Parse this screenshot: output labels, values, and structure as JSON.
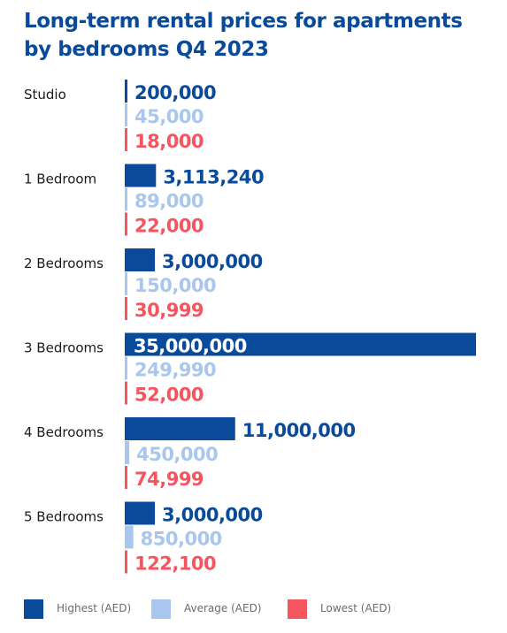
{
  "chart_data": {
    "type": "bar",
    "orientation": "horizontal",
    "title_lines": [
      "Long-term rental prices for apartments",
      "by bedrooms Q4 2023"
    ],
    "categories": [
      "Studio",
      "1 Bedroom",
      "2 Bedrooms",
      "3 Bedrooms",
      "4 Bedrooms",
      "5 Bedrooms"
    ],
    "series": [
      {
        "name": "Highest (AED)",
        "color": "#0a4a9b",
        "values": [
          200000,
          3113240,
          3000000,
          35000000,
          11000000,
          3000000
        ],
        "labels": [
          "200,000",
          "3,113,240",
          "3,000,000",
          "35,000,000",
          "11,000,000",
          "3,000,000"
        ]
      },
      {
        "name": "Average (AED)",
        "color": "#a8c6ee",
        "values": [
          45000,
          89000,
          150000,
          249990,
          450000,
          850000
        ],
        "labels": [
          "45,000",
          "89,000",
          "150,000",
          "249,990",
          "450,000",
          "850,000"
        ]
      },
      {
        "name": "Lowest (AED)",
        "color": "#f5555f",
        "values": [
          18000,
          22000,
          30999,
          52000,
          74999,
          122100
        ],
        "labels": [
          "18,000",
          "22,000",
          "30,999",
          "52,000",
          "74,999",
          "122,100"
        ]
      }
    ],
    "xlim": [
      0,
      35000000
    ],
    "grid": false,
    "legend": "bottom"
  }
}
